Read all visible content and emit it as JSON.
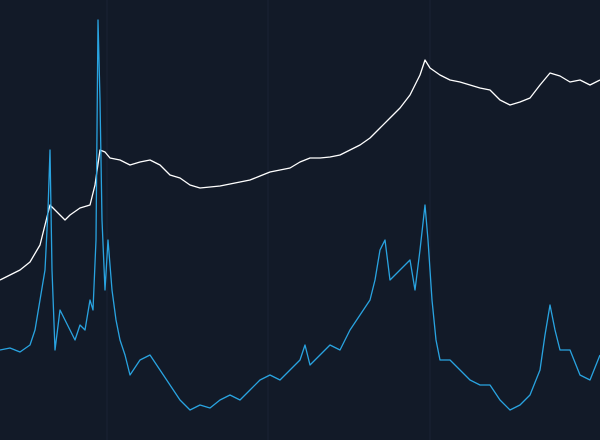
{
  "chart_data": {
    "type": "line",
    "background": "#121a28",
    "grid": true,
    "grid_color": "#1a2333",
    "xlim": [
      0,
      600
    ],
    "ylim": [
      0,
      440
    ],
    "xticks": [
      107,
      268,
      430
    ],
    "series": [
      {
        "color": "#ffffff",
        "x": [
          0,
          10,
          20,
          30,
          40,
          45,
          50,
          55,
          60,
          65,
          70,
          80,
          90,
          95,
          100,
          105,
          110,
          120,
          130,
          140,
          150,
          160,
          170,
          180,
          190,
          200,
          210,
          220,
          230,
          240,
          250,
          260,
          270,
          280,
          290,
          300,
          310,
          320,
          330,
          340,
          350,
          360,
          370,
          380,
          390,
          400,
          410,
          420,
          425,
          430,
          440,
          450,
          460,
          470,
          480,
          490,
          500,
          510,
          520,
          530,
          540,
          550,
          560,
          570,
          580,
          590,
          600
        ],
        "values": [
          160,
          165,
          170,
          178,
          195,
          215,
          235,
          230,
          225,
          220,
          225,
          232,
          235,
          255,
          290,
          288,
          282,
          280,
          275,
          278,
          280,
          275,
          265,
          262,
          255,
          252,
          253,
          254,
          256,
          258,
          260,
          264,
          268,
          270,
          272,
          278,
          282,
          282,
          283,
          285,
          290,
          295,
          302,
          312,
          322,
          332,
          345,
          365,
          380,
          372,
          365,
          360,
          358,
          355,
          352,
          350,
          340,
          335,
          338,
          342,
          355,
          367,
          364,
          358,
          360,
          355,
          360
        ]
      },
      {
        "color": "#29a3e0",
        "x": [
          0,
          10,
          20,
          30,
          35,
          40,
          45,
          48,
          50,
          52,
          55,
          60,
          65,
          70,
          75,
          80,
          85,
          90,
          93,
          96,
          98,
          100,
          102,
          105,
          108,
          112,
          116,
          120,
          125,
          130,
          140,
          150,
          160,
          170,
          180,
          190,
          200,
          210,
          220,
          230,
          240,
          250,
          260,
          270,
          280,
          290,
          300,
          305,
          310,
          320,
          330,
          340,
          350,
          360,
          370,
          375,
          380,
          385,
          390,
          400,
          410,
          415,
          420,
          425,
          428,
          432,
          436,
          440,
          450,
          460,
          470,
          480,
          490,
          500,
          510,
          520,
          530,
          540,
          545,
          550,
          555,
          560,
          570,
          580,
          590,
          600
        ],
        "values": [
          90,
          92,
          88,
          95,
          110,
          140,
          170,
          230,
          290,
          170,
          90,
          130,
          120,
          110,
          100,
          115,
          110,
          140,
          130,
          200,
          420,
          340,
          220,
          150,
          200,
          150,
          120,
          100,
          85,
          65,
          80,
          85,
          70,
          55,
          40,
          30,
          35,
          32,
          40,
          45,
          40,
          50,
          60,
          65,
          60,
          70,
          80,
          95,
          75,
          85,
          95,
          90,
          110,
          125,
          140,
          160,
          190,
          200,
          160,
          170,
          180,
          150,
          190,
          235,
          200,
          140,
          100,
          80,
          80,
          70,
          60,
          55,
          55,
          40,
          30,
          35,
          45,
          70,
          105,
          135,
          110,
          90,
          90,
          65,
          60,
          85
        ]
      }
    ]
  }
}
